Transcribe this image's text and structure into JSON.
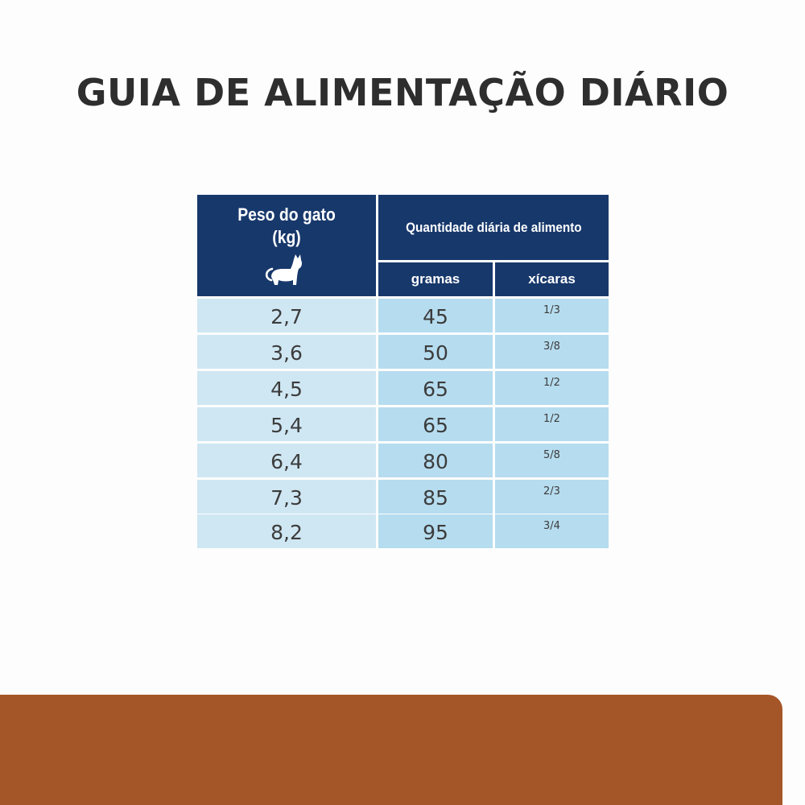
{
  "title": "GUIA DE ALIMENTAÇÃO DIÁRIO",
  "table": {
    "weight_header": "Peso do gato",
    "weight_unit": "(kg)",
    "weight_icon": "cat-icon",
    "quantity_header": "Quantidade diária de alimento",
    "grams_header": "gramas",
    "cups_header": "xícaras",
    "rows": [
      {
        "weight": "2,7",
        "grams": "45",
        "cups": "1/3"
      },
      {
        "weight": "3,6",
        "grams": "50",
        "cups": "3/8"
      },
      {
        "weight": "4,5",
        "grams": "65",
        "cups": "1/2"
      },
      {
        "weight": "5,4",
        "grams": "65",
        "cups": "1/2"
      },
      {
        "weight": "6,4",
        "grams": "80",
        "cups": "5/8"
      },
      {
        "weight": "7,3",
        "grams": "85",
        "cups": "2/3"
      },
      {
        "weight": "8,2",
        "grams": "95",
        "cups": "3/4"
      }
    ]
  },
  "colors": {
    "header_navy": "#17386b",
    "weight_cell": "#cfe7f3",
    "amount_cell": "#b6dcef",
    "footer_band": "#a55628",
    "title_text": "#2e2e2e"
  }
}
